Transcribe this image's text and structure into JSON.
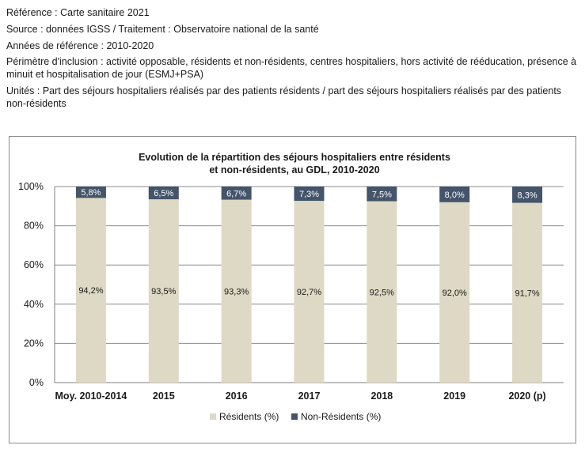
{
  "header": {
    "reference": "Référence : Carte sanitaire 2021",
    "source": "Source : données IGSS / Traitement : Observatoire national de la santé",
    "years": "Années de référence : 2010-2020",
    "perimeter": "Périmètre d'inclusion : activité opposable, résidents et non-résidents, centres hospitaliers, hors activité de rééducation, présence à minuit et hospitalisation de jour (ESMJ+PSA)",
    "units": "Unités : Part des séjours hospitaliers réalisés par des patients résidents / part des séjours hospitaliers réalisés par des patients non-résidents"
  },
  "chart_data": {
    "type": "bar",
    "stacked": true,
    "title_line1": "Evolution de la répartition des séjours hospitaliers entre résidents",
    "title_line2": "et non-résidents, au GDL, 2010-2020",
    "categories": [
      "Moy. 2010-2014",
      "2015",
      "2016",
      "2017",
      "2018",
      "2019",
      "2020 (p)"
    ],
    "series": [
      {
        "name": "Résidents (%)",
        "color": "#ddd9c4",
        "values": [
          94.2,
          93.5,
          93.3,
          92.7,
          92.5,
          92.0,
          91.7
        ],
        "labels": [
          "94,2%",
          "93,5%",
          "93,3%",
          "92,7%",
          "92,5%",
          "92,0%",
          "91,7%"
        ]
      },
      {
        "name": "Non-Résidents (%)",
        "color": "#44546a",
        "values": [
          5.8,
          6.5,
          6.7,
          7.3,
          7.5,
          8.0,
          8.3
        ],
        "labels": [
          "5,8%",
          "6,5%",
          "6,7%",
          "7,3%",
          "7,5%",
          "8,0%",
          "8,3%"
        ]
      }
    ],
    "y_ticks": [
      "0%",
      "20%",
      "40%",
      "60%",
      "80%",
      "100%"
    ],
    "ylim": [
      0,
      100
    ],
    "grid": true,
    "legend_position": "bottom"
  }
}
